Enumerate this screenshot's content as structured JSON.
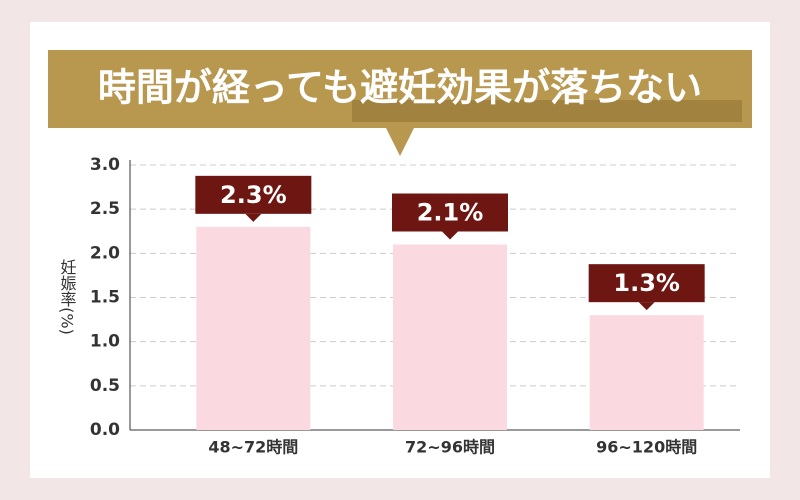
{
  "chart_data": {
    "type": "bar",
    "title": "時間が経っても避妊効果が落ちない",
    "y_label": "妊娠率(%)",
    "categories": [
      "48~72時間",
      "72~96時間",
      "96~120時間"
    ],
    "values": [
      2.3,
      2.1,
      1.3
    ],
    "value_labels": [
      "2.3%",
      "2.1%",
      "1.3%"
    ],
    "color": "#fbd9e0",
    "ylim": [
      0,
      3
    ],
    "yticks": [
      {
        "value": 0,
        "label": "0.0"
      },
      0.5,
      {
        "value": 1,
        "label": "1.0"
      },
      1.5,
      {
        "value": 2,
        "label": "2.0"
      },
      2.5,
      {
        "value": 3,
        "label": "3.0"
      }
    ],
    "grid": true
  }
}
